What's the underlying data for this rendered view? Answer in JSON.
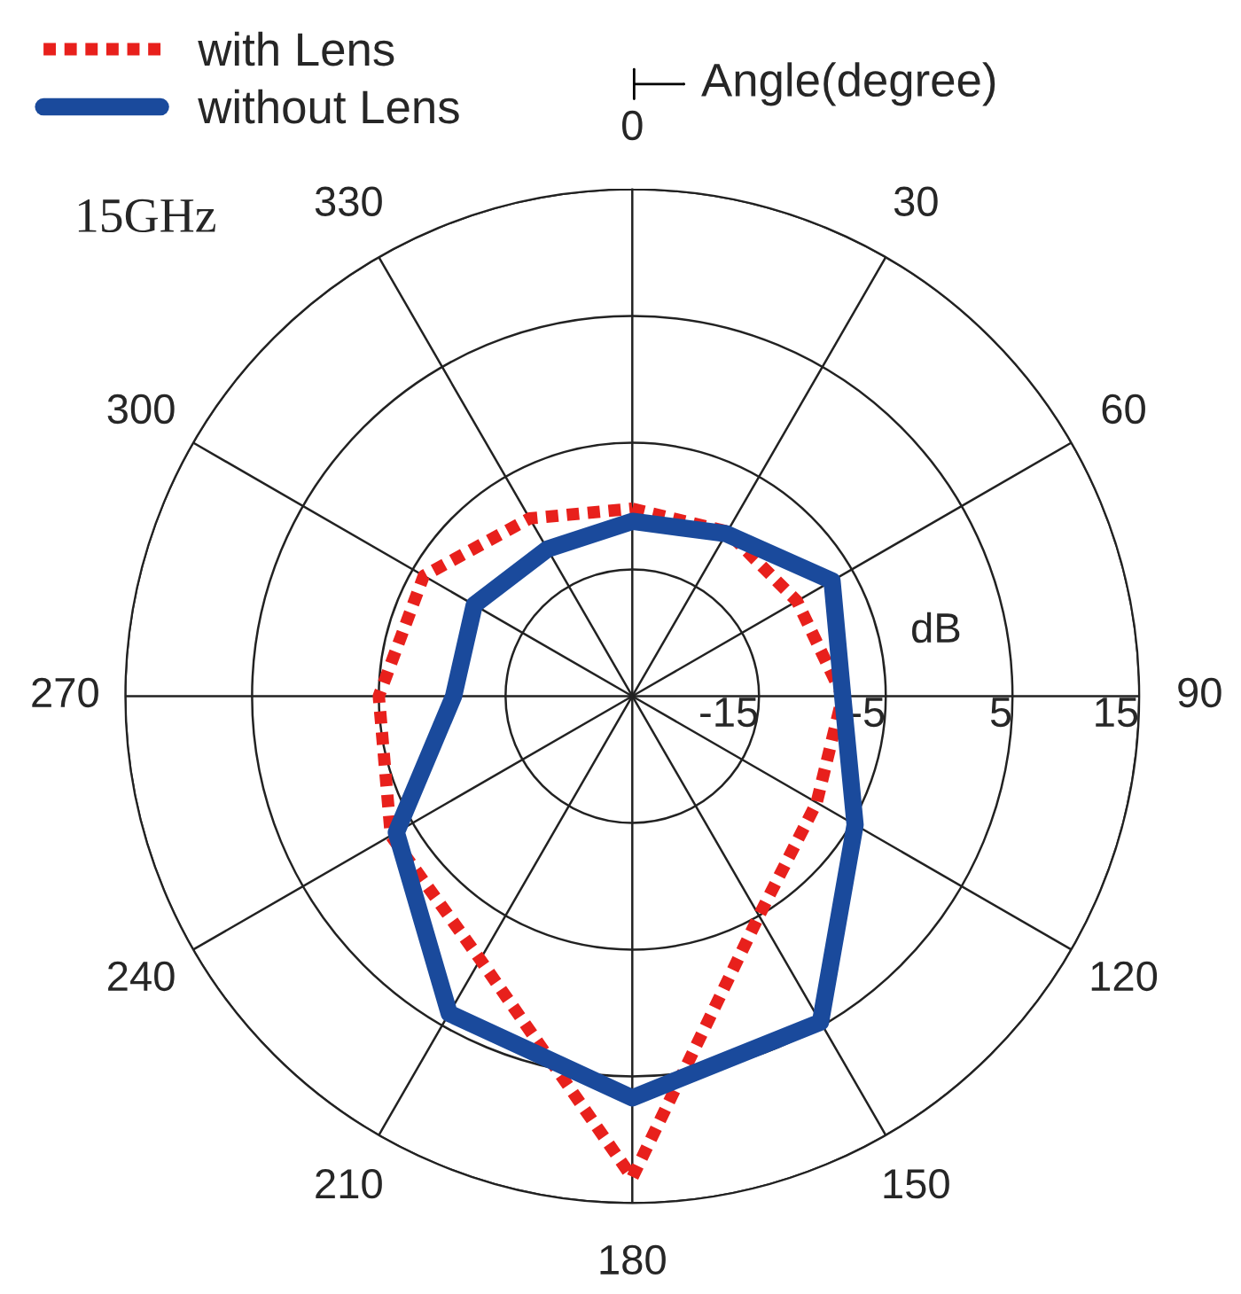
{
  "chart_data": {
    "type": "radar",
    "categories": [
      "0",
      "30",
      "60",
      "90",
      "120",
      "150",
      "180",
      "210",
      "240",
      "270",
      "300",
      "330"
    ],
    "ylim": [
      -25,
      15
    ],
    "yticks": [
      -15,
      -5,
      5,
      15
    ],
    "grid": true,
    "legend": "top left",
    "xlabel": "Angle(degree)",
    "ylabel": "dB",
    "annotations": [
      "15GHz"
    ],
    "series": [
      {
        "name": "with Lens",
        "color": "#e8201c",
        "line_style": "dotted",
        "values": [
          -10.2,
          -10,
          -10,
          -8.4,
          -8.2,
          -5,
          13,
          -1,
          -3,
          -5,
          -6,
          -8.8
        ]
      },
      {
        "name": "without Lens",
        "color": "#1a4a9c",
        "line_style": "solid",
        "values": [
          -11.2,
          -10.2,
          -6.8,
          -8.4,
          -4.7,
          4.7,
          6.7,
          3.9,
          -3.5,
          -10.9,
          -10.6,
          -11.6
        ]
      }
    ]
  }
}
